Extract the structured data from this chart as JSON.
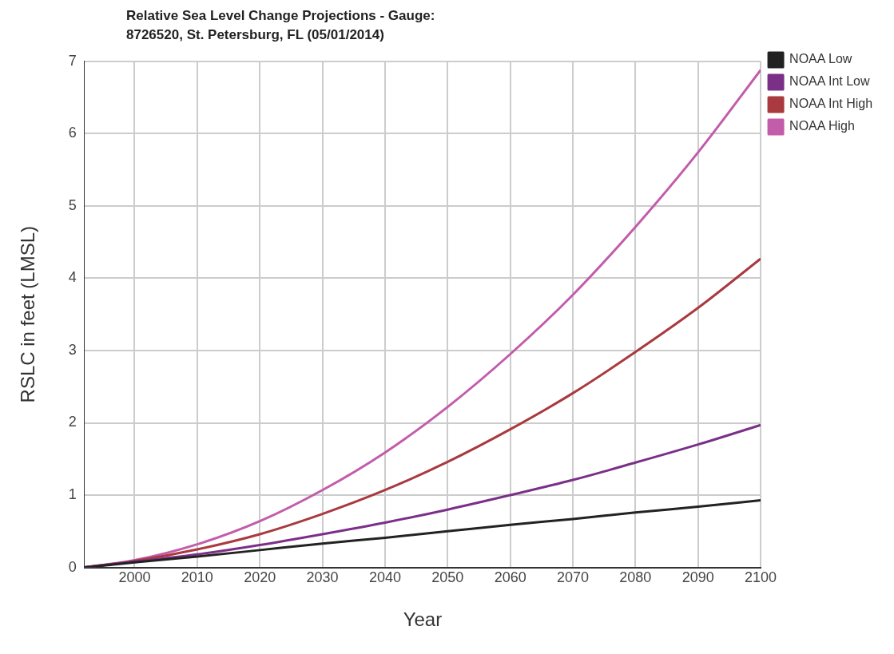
{
  "chart_data": {
    "type": "line",
    "title": "Relative Sea Level Change Projections - Gauge: 8726520, St. Petersburg, FL (05/01/2014)",
    "xlabel": "Year",
    "ylabel": "RSLC in feet (LMSL)",
    "x": [
      1992,
      2000,
      2010,
      2020,
      2030,
      2040,
      2050,
      2060,
      2070,
      2080,
      2090,
      2100
    ],
    "series": [
      {
        "name": "NOAA Low",
        "color": "#222222",
        "values": [
          0,
          0.07,
          0.15,
          0.24,
          0.33,
          0.41,
          0.5,
          0.59,
          0.67,
          0.76,
          0.84,
          0.93
        ]
      },
      {
        "name": "NOAA Int Low",
        "color": "#7b3088",
        "values": [
          0,
          0.08,
          0.18,
          0.31,
          0.46,
          0.62,
          0.8,
          1.0,
          1.21,
          1.45,
          1.7,
          1.97
        ]
      },
      {
        "name": "NOAA Int High",
        "color": "#a93a3f",
        "values": [
          0,
          0.09,
          0.25,
          0.46,
          0.74,
          1.07,
          1.46,
          1.91,
          2.41,
          2.98,
          3.59,
          4.27
        ]
      },
      {
        "name": "NOAA High",
        "color": "#c25cab",
        "values": [
          0,
          0.1,
          0.32,
          0.64,
          1.07,
          1.59,
          2.22,
          2.95,
          3.77,
          4.71,
          5.74,
          6.88
        ]
      }
    ],
    "xlim": [
      1992,
      2100
    ],
    "xticks": [
      2000,
      2010,
      2020,
      2030,
      2040,
      2050,
      2060,
      2070,
      2080,
      2090,
      2100
    ],
    "ylim": [
      0,
      7
    ],
    "yticks": [
      0,
      1,
      2,
      3,
      4,
      5,
      6,
      7
    ],
    "grid": true,
    "legend": "top right",
    "marker": "none",
    "line_style": "solid"
  }
}
